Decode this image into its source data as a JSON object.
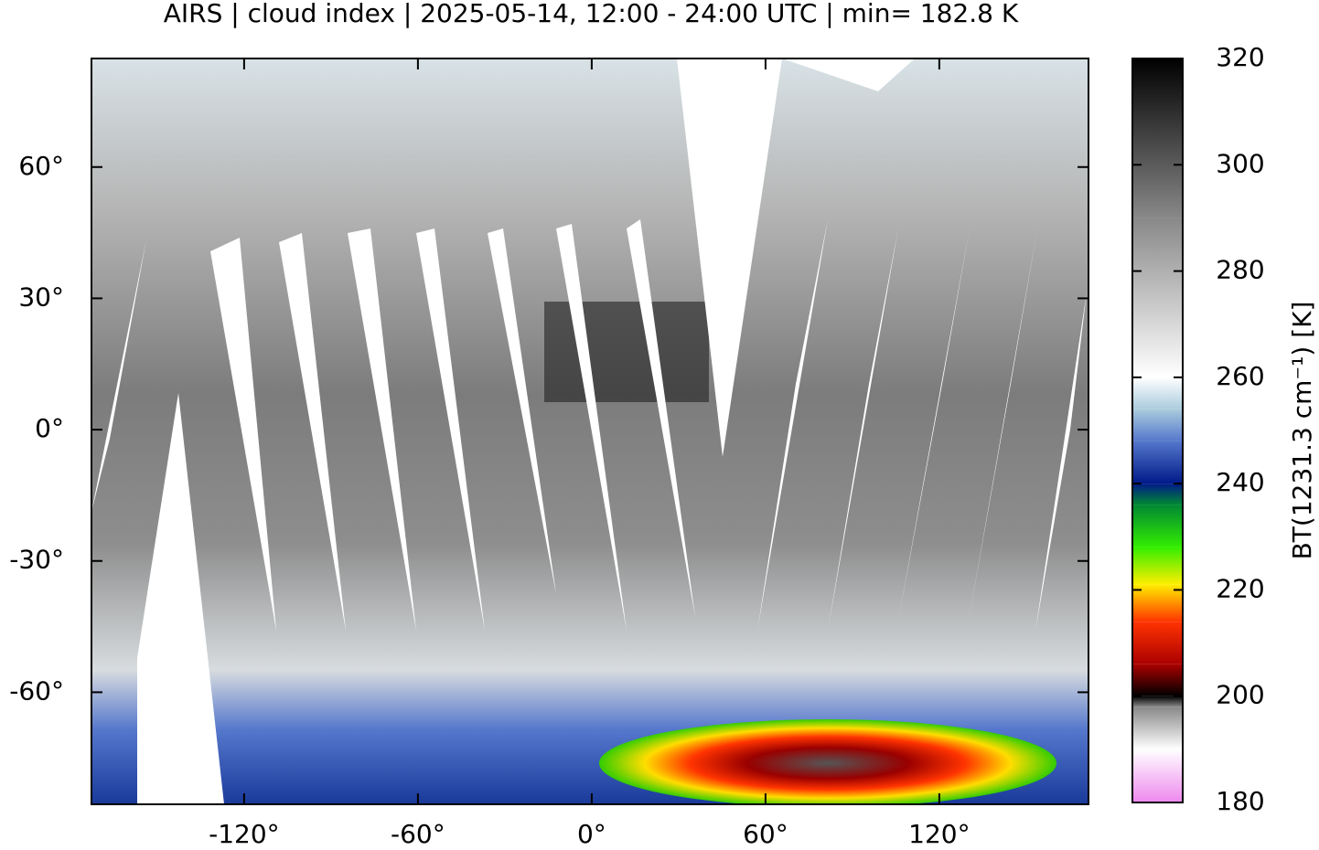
{
  "chart_data": {
    "type": "map",
    "title": "AIRS | cloud index | 2025-05-14, 12:00 - 24:00 UTC | min= 182.8 K",
    "xlim": [
      -172.7,
      171.5
    ],
    "ylim": [
      -85.6,
      84.8
    ],
    "xticks": [
      {
        "value": -120,
        "label": "-120°"
      },
      {
        "value": -60,
        "label": "-60°"
      },
      {
        "value": 0,
        "label": "0°"
      },
      {
        "value": 60,
        "label": "60°"
      },
      {
        "value": 120,
        "label": "120°"
      }
    ],
    "yticks": [
      {
        "value": 60,
        "label": "60°"
      },
      {
        "value": 30,
        "label": "30°"
      },
      {
        "value": 0,
        "label": "0°"
      },
      {
        "value": -30,
        "label": "-30°"
      },
      {
        "value": -60,
        "label": "-60°"
      }
    ],
    "colorbar": {
      "label": "BT(1231.3 cm⁻¹) [K]",
      "lim": [
        180,
        320
      ],
      "ticks": [
        180,
        200,
        220,
        240,
        260,
        280,
        300,
        320
      ],
      "colormap": [
        {
          "value": 180,
          "color": "#ee88ee"
        },
        {
          "value": 190,
          "color": "#ffffff"
        },
        {
          "value": 198,
          "color": "#888888"
        },
        {
          "value": 200,
          "color": "#000000"
        },
        {
          "value": 206,
          "color": "#aa0000"
        },
        {
          "value": 214,
          "color": "#ff3300"
        },
        {
          "value": 221,
          "color": "#ffee00"
        },
        {
          "value": 228,
          "color": "#33ee00"
        },
        {
          "value": 236,
          "color": "#008833"
        },
        {
          "value": 240,
          "color": "#001a88"
        },
        {
          "value": 248,
          "color": "#5577cc"
        },
        {
          "value": 254,
          "color": "#aaccdd"
        },
        {
          "value": 260,
          "color": "#ffffff"
        },
        {
          "value": 290,
          "color": "#888888"
        },
        {
          "value": 320,
          "color": "#000000"
        }
      ]
    }
  }
}
